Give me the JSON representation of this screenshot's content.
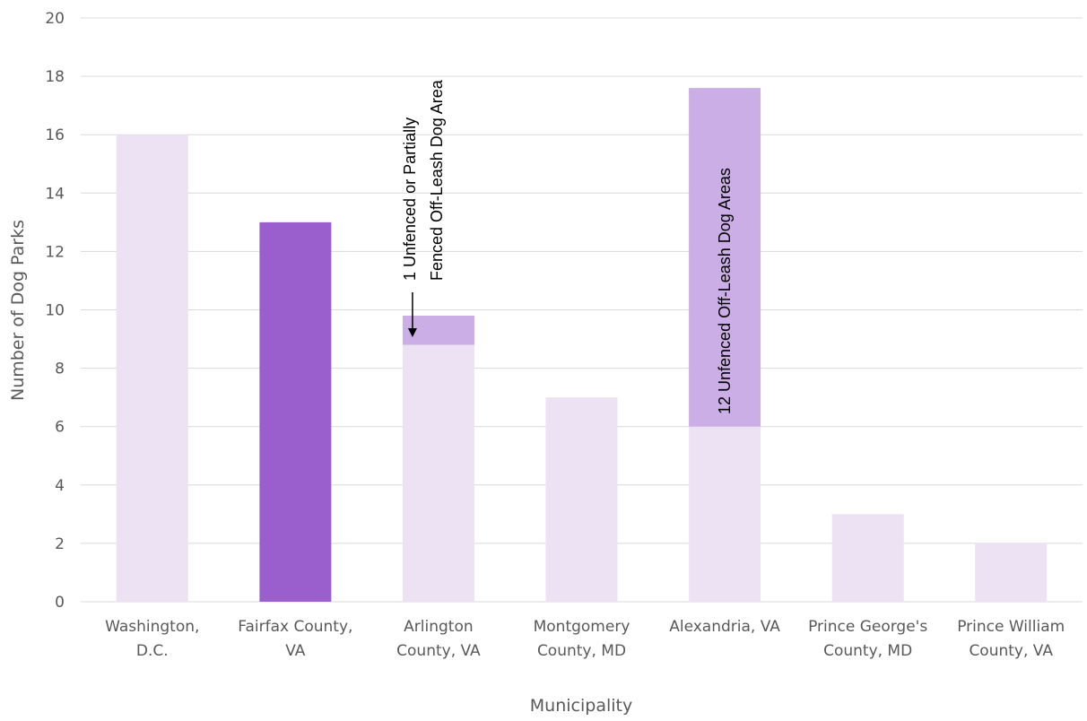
{
  "chart_data": {
    "type": "bar",
    "stacked": true,
    "categories": [
      [
        "Washington,",
        "D.C."
      ],
      [
        "Fairfax County,",
        "VA"
      ],
      [
        "Arlington",
        "County, VA"
      ],
      [
        "Montgomery",
        "County, MD"
      ],
      [
        "Alexandria, VA"
      ],
      [
        "Prince George's",
        "County, MD"
      ],
      [
        "Prince William",
        "County, VA"
      ]
    ],
    "series": [
      {
        "values": [
          16,
          13,
          8.8,
          7,
          6,
          3,
          2
        ],
        "colors": [
          "#ece2f4",
          "#9a5fcd",
          "#ece2f4",
          "#ece2f4",
          "#ece2f4",
          "#ece2f4",
          "#ece2f4"
        ]
      },
      {
        "values": [
          0,
          0,
          1,
          0,
          11.6,
          0,
          0
        ],
        "colors": [
          "#ccaee6",
          "#ccaee6",
          "#ccaee6",
          "#ccaee6",
          "#ccaee6",
          "#ccaee6",
          "#ccaee6"
        ]
      }
    ],
    "xlabel": "Municipality",
    "ylabel": "Number of Dog Parks",
    "ylim": [
      0,
      20
    ],
    "yticks": [
      "0",
      "2",
      "4",
      "6",
      "8",
      "10",
      "12",
      "14",
      "16",
      "18",
      "20"
    ],
    "grid": true,
    "annotations": [
      {
        "category_index": 2,
        "lines": [
          "1 Unfenced or Partially",
          "Fenced Off-Leash Dog Area"
        ],
        "arrow": true
      },
      {
        "category_index": 4,
        "lines": [
          "12 Unfenced Off-Leash Dog Areas"
        ],
        "arrow": false
      }
    ]
  }
}
